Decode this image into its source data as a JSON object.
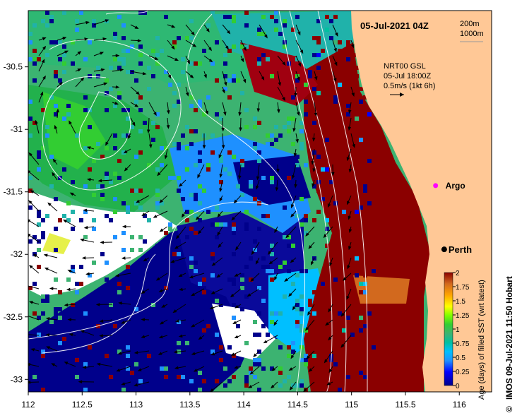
{
  "title": "05-Jul-2021 04Z",
  "depth_legend": {
    "line1": "200m",
    "line2": "1000m"
  },
  "current_note": {
    "line1": "NRT00 GSL",
    "line2": "05-Jul 18:00Z",
    "line3": "0.5m/s (1kt 6h)"
  },
  "places": [
    {
      "name": "Perth",
      "lon": 115.86,
      "lat": -31.96
    }
  ],
  "argo": {
    "label": "Argo",
    "lon": 115.78,
    "lat": -31.45
  },
  "x_axis": {
    "ticks": [
      "112",
      "112.5",
      "113",
      "113.5",
      "114",
      "114.5",
      "115",
      "115.5",
      "116"
    ],
    "range": [
      112,
      116.3
    ]
  },
  "y_axis": {
    "ticks": [
      "-30.5",
      "-31",
      "-31.5",
      "-32",
      "-32.5",
      "-33"
    ],
    "range": [
      -30.05,
      -33.1
    ]
  },
  "colorbar": {
    "label": "Age (days) of filled SST (wrt latest)",
    "ticks": [
      "2",
      "1.75",
      "1.5",
      "1.25",
      "1",
      "0.75",
      "0.5",
      "0.25",
      "0"
    ],
    "colors": [
      "#00008b",
      "#0000ff",
      "#1e90ff",
      "#00bfff",
      "#00c0a0",
      "#3cb371",
      "#32cd32",
      "#7fff00",
      "#ffff00",
      "#ffa500",
      "#d2691e",
      "#8b0000"
    ]
  },
  "credit": "IMOS 09-Jul-2021 11:50 Hobart",
  "copyright_symbol": "©",
  "colors": {
    "land": "#ffc896",
    "deep_blue": "#00008b",
    "dark_red": "#8b0000",
    "green": "#3cb371",
    "argo_marker": "#ff00ff"
  }
}
